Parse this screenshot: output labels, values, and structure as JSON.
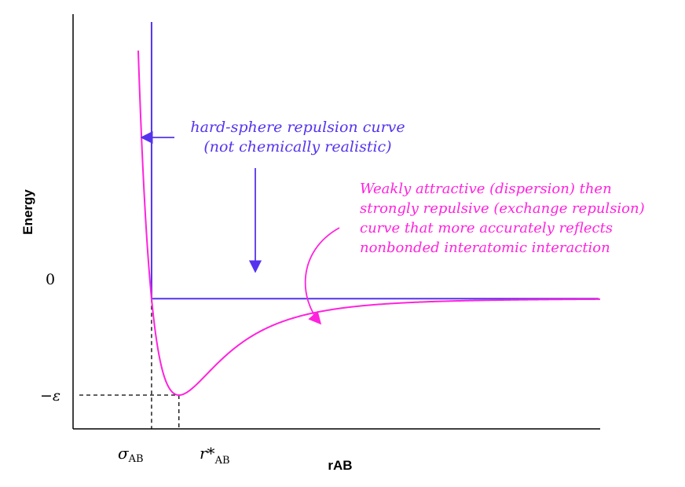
{
  "chart_data": {
    "type": "line",
    "title": "",
    "xlabel": "rAB",
    "ylabel": "Energy",
    "grid": false,
    "ylim": [
      -1.35,
      2.95
    ],
    "y_ticks": [
      {
        "label": "0",
        "value": 0
      },
      {
        "label": "−ε",
        "value": -1
      }
    ],
    "x_ticks": [
      {
        "label": "σ",
        "sub": "AB",
        "value": 1.0
      },
      {
        "label": "r*",
        "sub": "AB",
        "value": 1.122
      }
    ],
    "series": [
      {
        "name": "",
        "style": "hard-sphere",
        "color": "#5533ee",
        "description_label": "hard-sphere repulsion curve (not chemically realistic)"
      },
      {
        "name": "",
        "style": "lennard-jones",
        "color": "#ff22dd",
        "epsilon": 1,
        "sigma": 1,
        "x_range": [
          0.9405,
          3.0
        ]
      }
    ],
    "annotations": {
      "hard_sphere": {
        "lines": [
          "hard-sphere repulsion curve",
          "(not chemically realistic)"
        ],
        "color": "#5533ee"
      },
      "lj": {
        "lines": [
          "Weakly attractive (dispersion) then",
          "strongly repulsive (exchange repulsion)",
          "curve that more accurately reflects",
          "nonbonded interatomic interaction"
        ],
        "color": "#ff22dd"
      }
    }
  }
}
